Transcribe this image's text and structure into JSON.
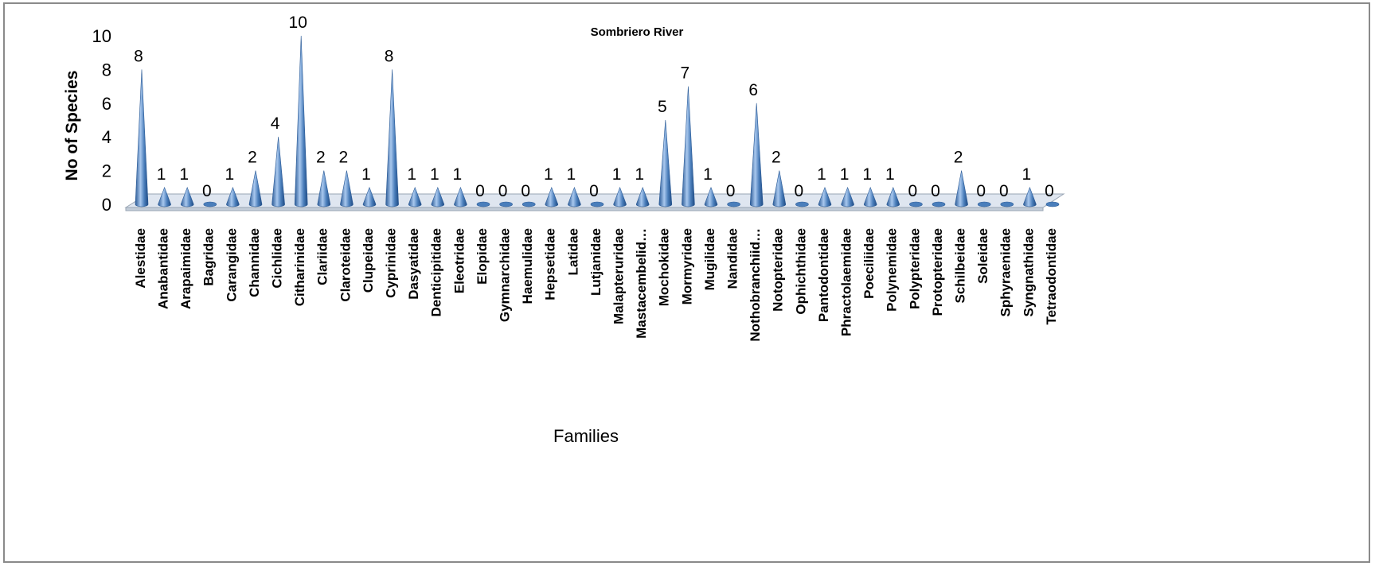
{
  "chart_data": {
    "type": "bar",
    "title": "Sombriero River",
    "xlabel": "Families",
    "ylabel": "No of Species",
    "ylim": [
      0,
      10
    ],
    "yticks": [
      0,
      2,
      4,
      6,
      8,
      10
    ],
    "grid": false,
    "legend": "none",
    "style": "3d-cone",
    "colors": {
      "bar": "#4a7ebb",
      "bar_light": "#a9c8ee",
      "bar_dark": "#2a5a96",
      "floor": "#dfe6f0"
    },
    "categories": [
      "Alestidae",
      "Anabantidae",
      "Arapaimidae",
      "Bagridae",
      "Carangidae",
      "Channidae",
      "Cichlidae",
      "Citharinidae",
      "Clariidae",
      "Claroteidae",
      "Clupeidae",
      "Cyprinidae",
      "Dasyatidae",
      "Denticipitidae",
      "Eleotridae",
      "Elopidae",
      "Gymnarchidae",
      "Haemulidae",
      "Hepsetidae",
      "Latidae",
      "Lutjanidae",
      "Malapteruridae",
      "Mastacembelid…",
      "Mochokidae",
      "Mormyridae",
      "Mugilidae",
      "Nandidae",
      "Nothobranchiid…",
      "Notopteridae",
      "Ophichthidae",
      "Pantodontidae",
      "Phractolaemidae",
      "Poeciliidae",
      "Polynemidae",
      "Polypteridae",
      "Protopteridae",
      "Schilbeidae",
      "Soleidae",
      "Sphyraenidae",
      "Syngnathidae",
      "Tetraodontidae"
    ],
    "values": [
      8,
      1,
      1,
      0,
      1,
      2,
      4,
      10,
      2,
      2,
      1,
      8,
      1,
      1,
      1,
      0,
      0,
      0,
      1,
      1,
      0,
      1,
      1,
      5,
      7,
      1,
      0,
      6,
      2,
      0,
      1,
      1,
      1,
      1,
      0,
      0,
      2,
      0,
      0,
      1,
      0
    ]
  }
}
